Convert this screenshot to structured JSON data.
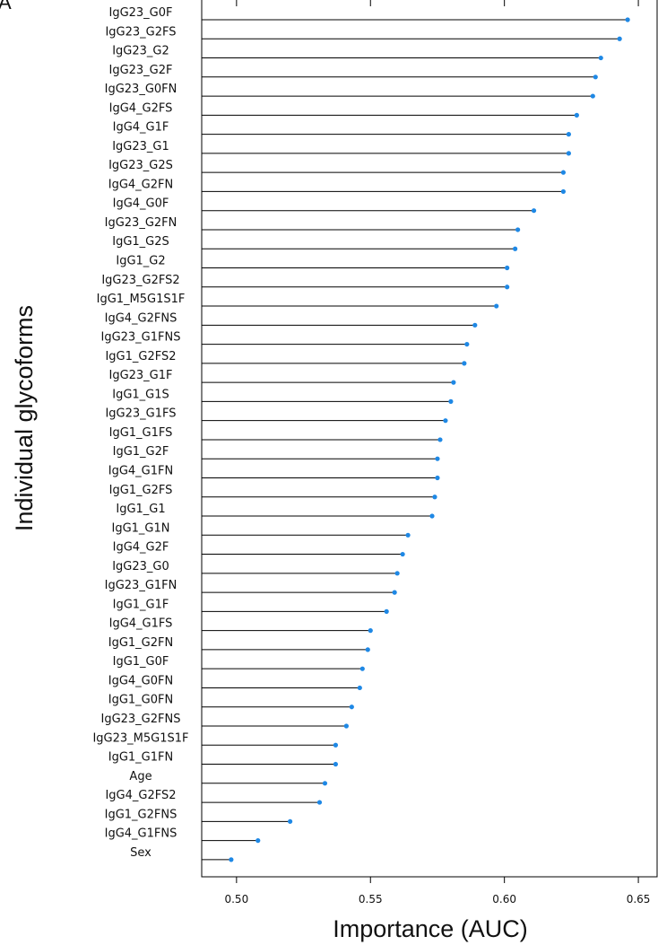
{
  "chart_data": {
    "type": "lollipop",
    "panel_label": "A",
    "xlabel": "Importance (AUC)",
    "ylabel": "Individual glycoforms",
    "xlim": [
      0.487,
      0.657
    ],
    "xticks": [
      0.5,
      0.55,
      0.6,
      0.65
    ],
    "xtick_labels": [
      "0.50",
      "0.55",
      "0.60",
      "0.65"
    ],
    "grid": false,
    "colors": {
      "point": "#1e88e5",
      "line": "#000000",
      "axis": "#000000"
    },
    "categories": [
      "IgG23_G0F",
      "IgG23_G2FS",
      "IgG23_G2",
      "IgG23_G2F",
      "IgG23_G0FN",
      "IgG4_G2FS",
      "IgG4_G1F",
      "IgG23_G1",
      "IgG23_G2S",
      "IgG4_G2FN",
      "IgG4_G0F",
      "IgG23_G2FN",
      "IgG1_G2S",
      "IgG1_G2",
      "IgG23_G2FS2",
      "IgG1_M5G1S1F",
      "IgG4_G2FNS",
      "IgG23_G1FNS",
      "IgG1_G2FS2",
      "IgG23_G1F",
      "IgG1_G1S",
      "IgG23_G1FS",
      "IgG1_G1FS",
      "IgG1_G2F",
      "IgG4_G1FN",
      "IgG1_G2FS",
      "IgG1_G1",
      "IgG1_G1N",
      "IgG4_G2F",
      "IgG23_G0",
      "IgG23_G1FN",
      "IgG1_G1F",
      "IgG4_G1FS",
      "IgG1_G2FN",
      "IgG1_G0F",
      "IgG4_G0FN",
      "IgG1_G0FN",
      "IgG23_G2FNS",
      "IgG23_M5G1S1F",
      "IgG1_G1FN",
      "Age",
      "IgG4_G2FS2",
      "IgG1_G2FNS",
      "IgG4_G1FNS",
      "Sex"
    ],
    "values": [
      0.646,
      0.643,
      0.636,
      0.634,
      0.633,
      0.627,
      0.624,
      0.624,
      0.622,
      0.622,
      0.611,
      0.605,
      0.604,
      0.601,
      0.601,
      0.597,
      0.589,
      0.586,
      0.585,
      0.581,
      0.58,
      0.578,
      0.576,
      0.575,
      0.575,
      0.574,
      0.573,
      0.564,
      0.562,
      0.56,
      0.559,
      0.556,
      0.55,
      0.549,
      0.547,
      0.546,
      0.543,
      0.541,
      0.537,
      0.537,
      0.533,
      0.531,
      0.52,
      0.508,
      0.498
    ]
  }
}
